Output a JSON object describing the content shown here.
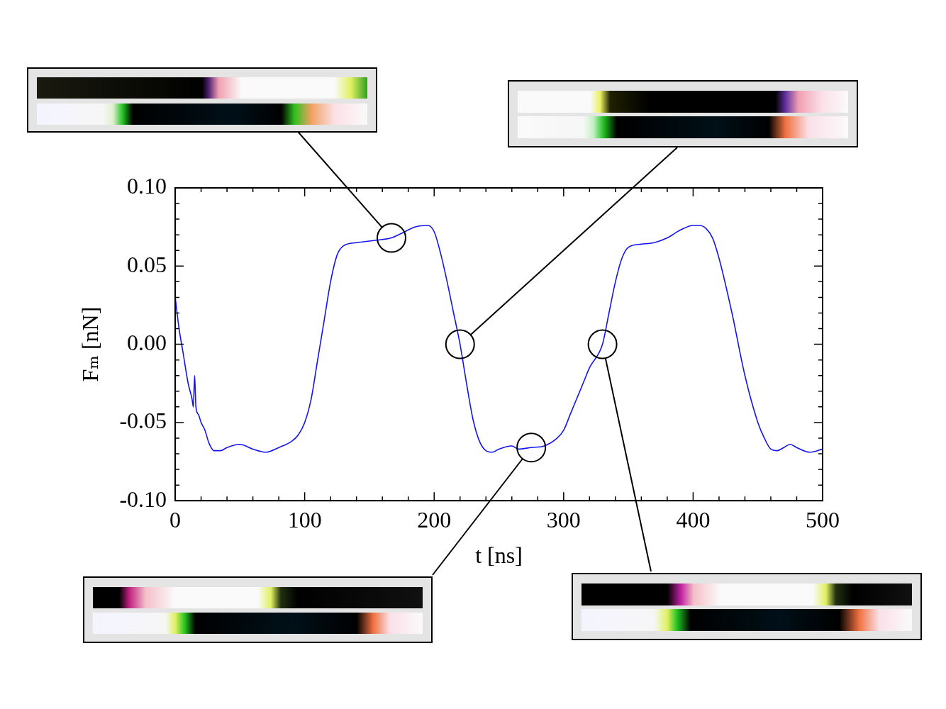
{
  "chart_data": {
    "type": "line",
    "x_label": "t [ns]",
    "y_label": "Fₘ [nN]",
    "x": [
      0,
      3,
      6,
      10,
      13,
      14,
      15,
      16,
      18,
      20,
      23,
      26,
      30,
      35,
      40,
      50,
      60,
      70,
      80,
      90,
      95,
      100,
      105,
      110,
      115,
      120,
      125,
      130,
      140,
      150,
      160,
      167,
      175,
      185,
      195,
      200,
      205,
      210,
      215,
      220,
      225,
      230,
      235,
      240,
      245,
      250,
      260,
      265,
      275,
      285,
      295,
      300,
      305,
      310,
      315,
      320,
      330,
      335,
      340,
      345,
      350,
      360,
      370,
      380,
      390,
      400,
      405,
      410,
      415,
      420,
      430,
      440,
      450,
      455,
      460,
      465,
      470,
      475,
      480,
      490,
      500
    ],
    "values": [
      0.03,
      0.01,
      -0.005,
      -0.025,
      -0.035,
      -0.04,
      -0.02,
      -0.04,
      -0.045,
      -0.05,
      -0.055,
      -0.063,
      -0.068,
      -0.068,
      -0.066,
      -0.064,
      -0.067,
      -0.069,
      -0.066,
      -0.062,
      -0.058,
      -0.05,
      -0.035,
      -0.01,
      0.015,
      0.04,
      0.057,
      0.063,
      0.065,
      0.066,
      0.067,
      0.068,
      0.071,
      0.075,
      0.076,
      0.072,
      0.058,
      0.04,
      0.02,
      0,
      -0.025,
      -0.048,
      -0.062,
      -0.068,
      -0.069,
      -0.067,
      -0.065,
      -0.067,
      -0.066,
      -0.065,
      -0.06,
      -0.055,
      -0.045,
      -0.035,
      -0.025,
      -0.015,
      0,
      0.02,
      0.04,
      0.055,
      0.062,
      0.064,
      0.065,
      0.068,
      0.073,
      0.076,
      0.076,
      0.074,
      0.068,
      0.055,
      0.02,
      -0.02,
      -0.05,
      -0.06,
      -0.067,
      -0.068,
      -0.066,
      -0.064,
      -0.066,
      -0.069,
      -0.067
    ],
    "color": "#1414f0",
    "marker": "none",
    "xlim": [
      0,
      500
    ],
    "xticks": [
      0,
      100,
      200,
      300,
      400,
      500
    ],
    "ylim": [
      -0.1,
      0.1
    ],
    "yticks": [
      {
        "value": -0.1,
        "label": "-0.10"
      },
      {
        "value": -0.05,
        "label": "-0.05"
      },
      {
        "value": 0,
        "label": "0.00"
      },
      {
        "value": 0.05,
        "label": "0.05"
      },
      {
        "value": 0.1,
        "label": "0.10"
      }
    ],
    "grid": false
  }
}
